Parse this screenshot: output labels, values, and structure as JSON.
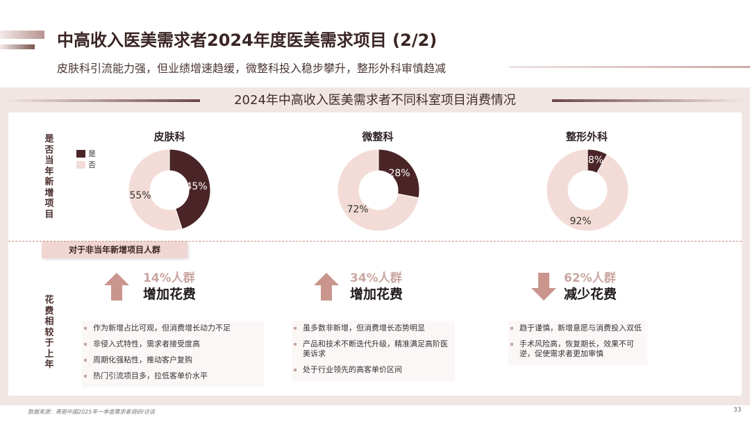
{
  "header": {
    "title": "中高收入医美需求者2024年度医美需求项目 (2/2)",
    "subtitle": "皮肤科引流能力强，但业绩增速趋缓，微整科投入稳步攀升，整形外科审慎趋减"
  },
  "section_title": "2024年中高收入医美需求者不同科室项目消费情况",
  "row_labels": {
    "top": "是否当年新增项目",
    "bottom": "花费相较于上年"
  },
  "legend": [
    {
      "label": "是",
      "color": "#4a2528"
    },
    {
      "label": "否",
      "color": "#f3dcd7"
    }
  ],
  "chart_data": [
    {
      "type": "pie",
      "title": "皮肤科",
      "categories": [
        "是",
        "否"
      ],
      "values": [
        45,
        55
      ],
      "labels": [
        "45%",
        "55%"
      ],
      "colors": [
        "#4a2528",
        "#f3dcd7"
      ]
    },
    {
      "type": "pie",
      "title": "微整科",
      "categories": [
        "是",
        "否"
      ],
      "values": [
        28,
        72
      ],
      "labels": [
        "28%",
        "72%"
      ],
      "colors": [
        "#4a2528",
        "#f3dcd7"
      ]
    },
    {
      "type": "pie",
      "title": "整形外科",
      "categories": [
        "是",
        "否"
      ],
      "values": [
        8,
        92
      ],
      "labels": [
        "8%",
        "92%"
      ],
      "colors": [
        "#4a2528",
        "#f3dcd7"
      ]
    }
  ],
  "tag": "对于非当年新增项目人群",
  "spend": [
    {
      "pct": "14%人群",
      "action": "增加花费",
      "direction": "up",
      "bullets": [
        "作为新增占比可观，但消费增长动力不足",
        "非侵入式特性，需求者接受度高",
        "周期化强粘性，推动客户复购",
        "热门引流项目多，拉低客单价水平"
      ]
    },
    {
      "pct": "34%人群",
      "action": "增加花费",
      "direction": "up",
      "bullets": [
        "虽多数非新增，但消费增长态势明显",
        "产品和技术不断迭代升级，精准满足高阶医美诉求",
        "处于行业领先的高客单价区间"
      ]
    },
    {
      "pct": "62%人群",
      "action": "减少花费",
      "direction": "down",
      "bullets": [
        "趋于谨慎，新增意愿与消费投入双低",
        "手术风险高，恢复期长，效果不可逆，促使需求者更加审慎"
      ]
    }
  ],
  "footer": {
    "source": "数据来源：弗若中国2025年一季度需求者调研/访谈",
    "page": "33"
  },
  "arrow_color": "#c9958d"
}
